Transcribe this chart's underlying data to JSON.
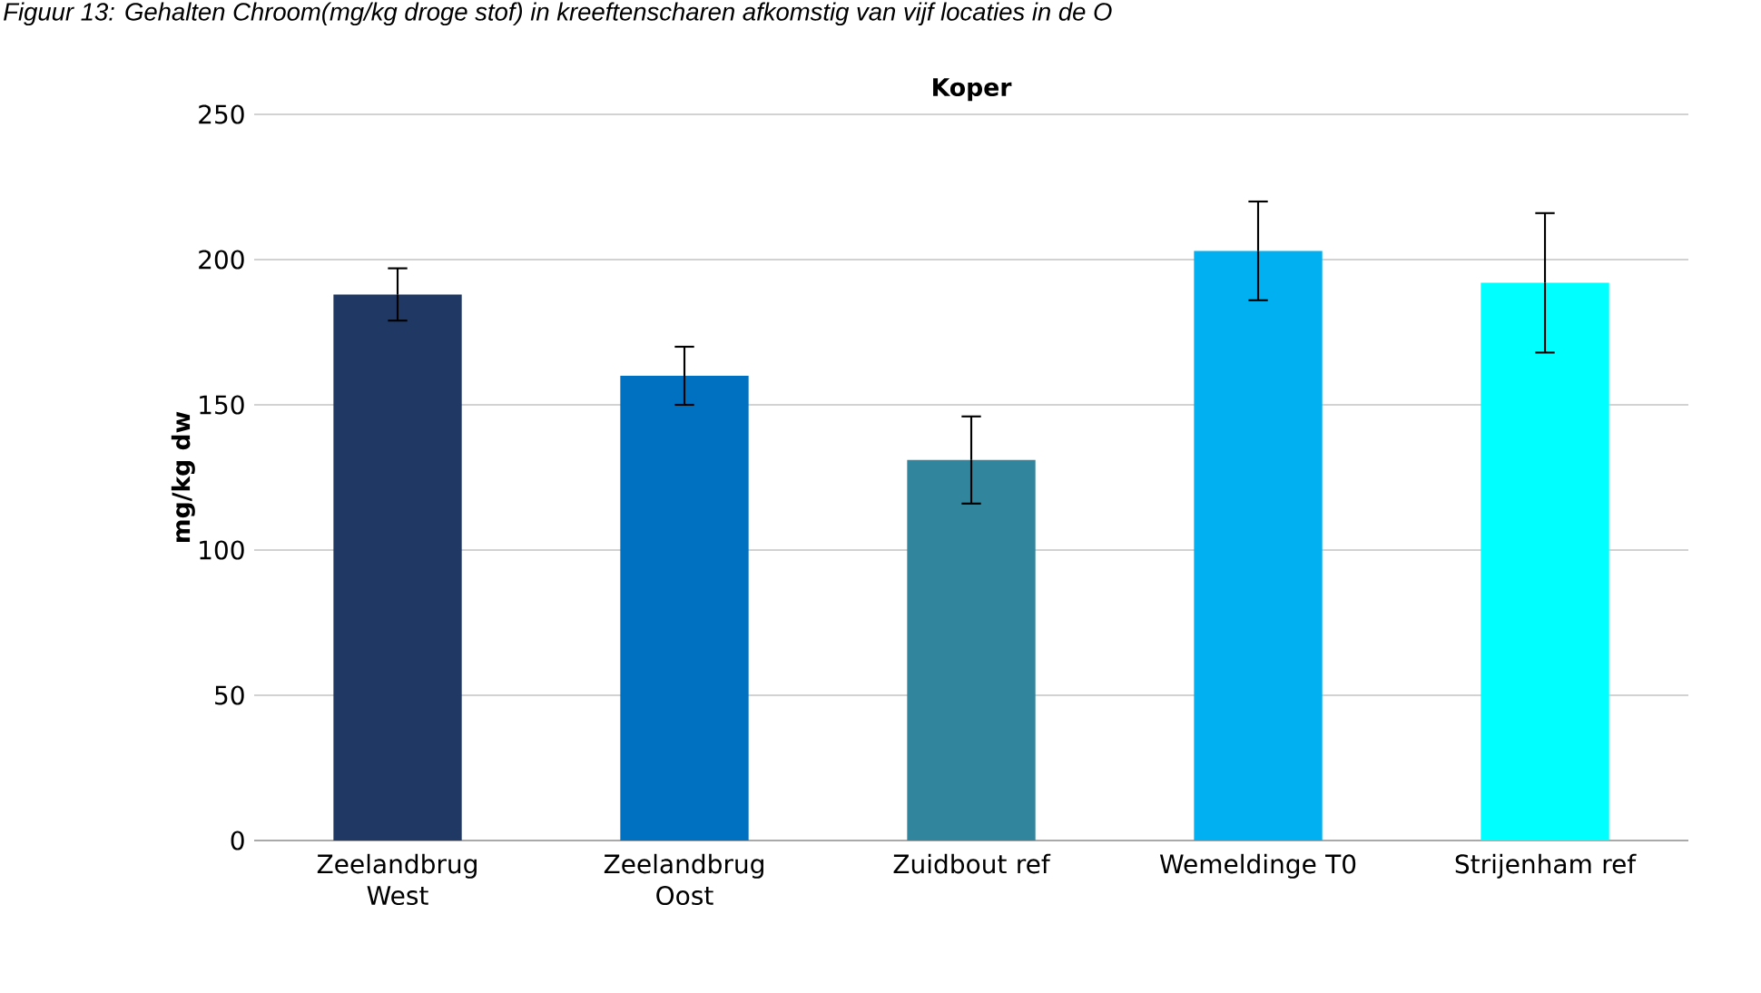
{
  "chart_data": {
    "type": "bar",
    "title": "Koper",
    "ylabel": "mg/kg dw",
    "annotations": [
      "Figuur 13: Gehalten Chroom(mg/kg droge stof) in kreeftenscharen afkomstig van vijf locaties in de O"
    ],
    "categories": [
      "Zeelandbrug West",
      "Zeelandbrug Oost",
      "Zuidbout ref",
      "Wemeldinge T0",
      "Strijenham ref"
    ],
    "values": [
      188,
      160,
      131,
      203,
      192
    ],
    "errors": [
      9,
      10,
      15,
      17,
      24
    ],
    "colors": [
      "#1f3864",
      "#0070c0",
      "#31859c",
      "#00b0f0",
      "#00ffff"
    ],
    "ylim": [
      0,
      250
    ],
    "yticks": [
      0,
      50,
      100,
      150,
      200,
      250
    ],
    "grid": "y"
  }
}
